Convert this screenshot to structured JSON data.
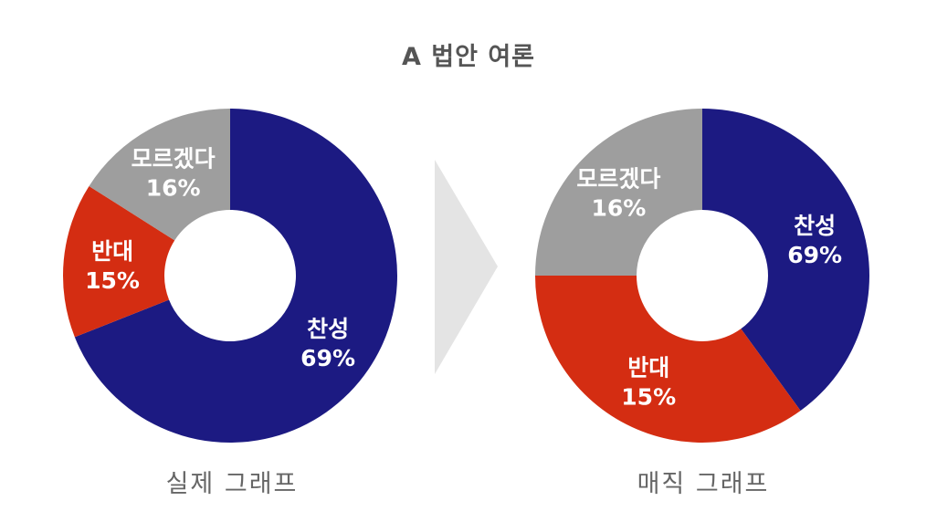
{
  "title": "A 법안 여론",
  "chart_data": [
    {
      "type": "pie",
      "title": "",
      "caption": "실제 그래프",
      "slices": [
        {
          "label": "찬성",
          "value": 69,
          "value_label": "69%",
          "color": "#1c1a82"
        },
        {
          "label": "반대",
          "value": 15,
          "value_label": "15%",
          "color": "#d42d12"
        },
        {
          "label": "모르겠다",
          "value": 16,
          "value_label": "16%",
          "color": "#9e9e9e"
        }
      ],
      "donut": true,
      "legend": "none"
    },
    {
      "type": "pie",
      "title": "",
      "caption": "매직 그래프",
      "slices": [
        {
          "label": "찬성",
          "value": 69,
          "value_label": "69%",
          "color": "#1c1a82",
          "drawn_share": 0.4
        },
        {
          "label": "반대",
          "value": 15,
          "value_label": "15%",
          "color": "#d42d12",
          "drawn_share": 0.35
        },
        {
          "label": "모르겠다",
          "value": 16,
          "value_label": "16%",
          "color": "#9e9e9e",
          "drawn_share": 0.25
        }
      ],
      "donut": true,
      "legend": "none"
    }
  ],
  "arrow_color": "#e4e4e4"
}
